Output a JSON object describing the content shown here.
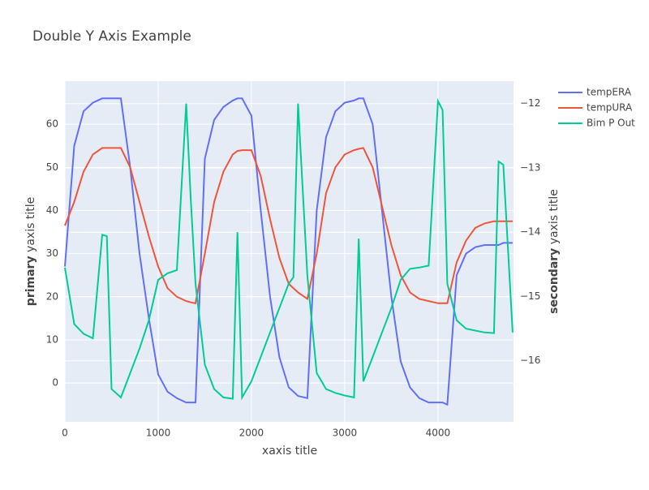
{
  "chart_data": {
    "type": "line",
    "title": "Double Y Axis Example",
    "xlabel": "xaxis title",
    "ylabel": [
      "primary",
      "yaxis title"
    ],
    "y2label": [
      "secondary",
      "yaxis title"
    ],
    "x": [
      0,
      100,
      200,
      300,
      400,
      450,
      500,
      600,
      700,
      800,
      900,
      1000,
      1100,
      1200,
      1300,
      1350,
      1400,
      1500,
      1600,
      1700,
      1800,
      1850,
      1900,
      2000,
      2100,
      2200,
      2300,
      2400,
      2450,
      2500,
      2600,
      2700,
      2800,
      2900,
      3000,
      3100,
      3150,
      3200,
      3300,
      3400,
      3500,
      3600,
      3700,
      3800,
      3900,
      4000,
      4050,
      4100,
      4200,
      4300,
      4400,
      4500,
      4600,
      4650,
      4700,
      4800
    ],
    "xlim": [
      0,
      4810
    ],
    "xticks": [
      0,
      1000,
      2000,
      3000,
      4000
    ],
    "ylim": [
      -9,
      70
    ],
    "yticks": [
      0,
      10,
      20,
      30,
      40,
      50,
      60
    ],
    "y2lim": [
      -16.95,
      -11.65
    ],
    "y2ticks": [
      {
        "value": -16,
        "label": "−16"
      },
      {
        "value": -15,
        "label": "−15"
      },
      {
        "value": -14,
        "label": "−14"
      },
      {
        "value": -13,
        "label": "−13"
      },
      {
        "value": -12,
        "label": "−12"
      }
    ],
    "grid": true,
    "legend": "right",
    "series": [
      {
        "name": "tempERA",
        "color": "#636efa",
        "values": [
          27,
          55,
          63,
          65,
          66,
          66,
          66,
          66,
          50,
          30,
          15,
          2,
          -2,
          -3.5,
          -4.5,
          -4.5,
          -4.5,
          52,
          61,
          64,
          65.5,
          66,
          66,
          62,
          40,
          20,
          6,
          -1,
          -2,
          -3,
          -3.5,
          40,
          57,
          63,
          65,
          65.5,
          66,
          66,
          60,
          40,
          20,
          5,
          -1,
          -3.5,
          -4.5,
          -4.5,
          -4.5,
          -5,
          25,
          30,
          31.5,
          32,
          32,
          32,
          32.5,
          32.5
        ]
      },
      {
        "name": "tempURA",
        "color": "#ef553b",
        "values": [
          36.5,
          42,
          49,
          53,
          54.5,
          54.5,
          54.5,
          54.5,
          50,
          42,
          34,
          27,
          22,
          20,
          19,
          18.7,
          18.5,
          30,
          42,
          49,
          53,
          53.8,
          54,
          54,
          48,
          38,
          29,
          23,
          22,
          21,
          19.5,
          30,
          44,
          50,
          53,
          54,
          54.3,
          54.5,
          50,
          41,
          32,
          25,
          21,
          19.5,
          19,
          18.5,
          18.5,
          18.5,
          28,
          33,
          36,
          37,
          37.5,
          37.5,
          37.5,
          37.5
        ]
      },
      {
        "name": "Bim P Out",
        "color": "#00cc96",
        "axis": "y2",
        "values": [
          -14.55,
          -15.43,
          -15.58,
          -15.65,
          -14.04,
          -14.06,
          -16.44,
          -16.57,
          -16.19,
          -15.81,
          -15.37,
          -14.74,
          -14.64,
          -14.59,
          -12.0,
          -13.5,
          -14.8,
          -16.06,
          -16.44,
          -16.57,
          -16.59,
          -14.0,
          -16.57,
          -16.32,
          -15.94,
          -15.56,
          -15.18,
          -14.8,
          -14.7,
          -12.0,
          -14.68,
          -16.19,
          -16.44,
          -16.5,
          -16.54,
          -16.57,
          -14.1,
          -16.32,
          -15.94,
          -15.56,
          -15.18,
          -14.74,
          -14.57,
          -14.55,
          -14.52,
          -11.96,
          -12.1,
          -14.8,
          -15.37,
          -15.5,
          -15.53,
          -15.56,
          -15.57,
          -12.9,
          -12.95,
          -15.56
        ]
      }
    ]
  }
}
